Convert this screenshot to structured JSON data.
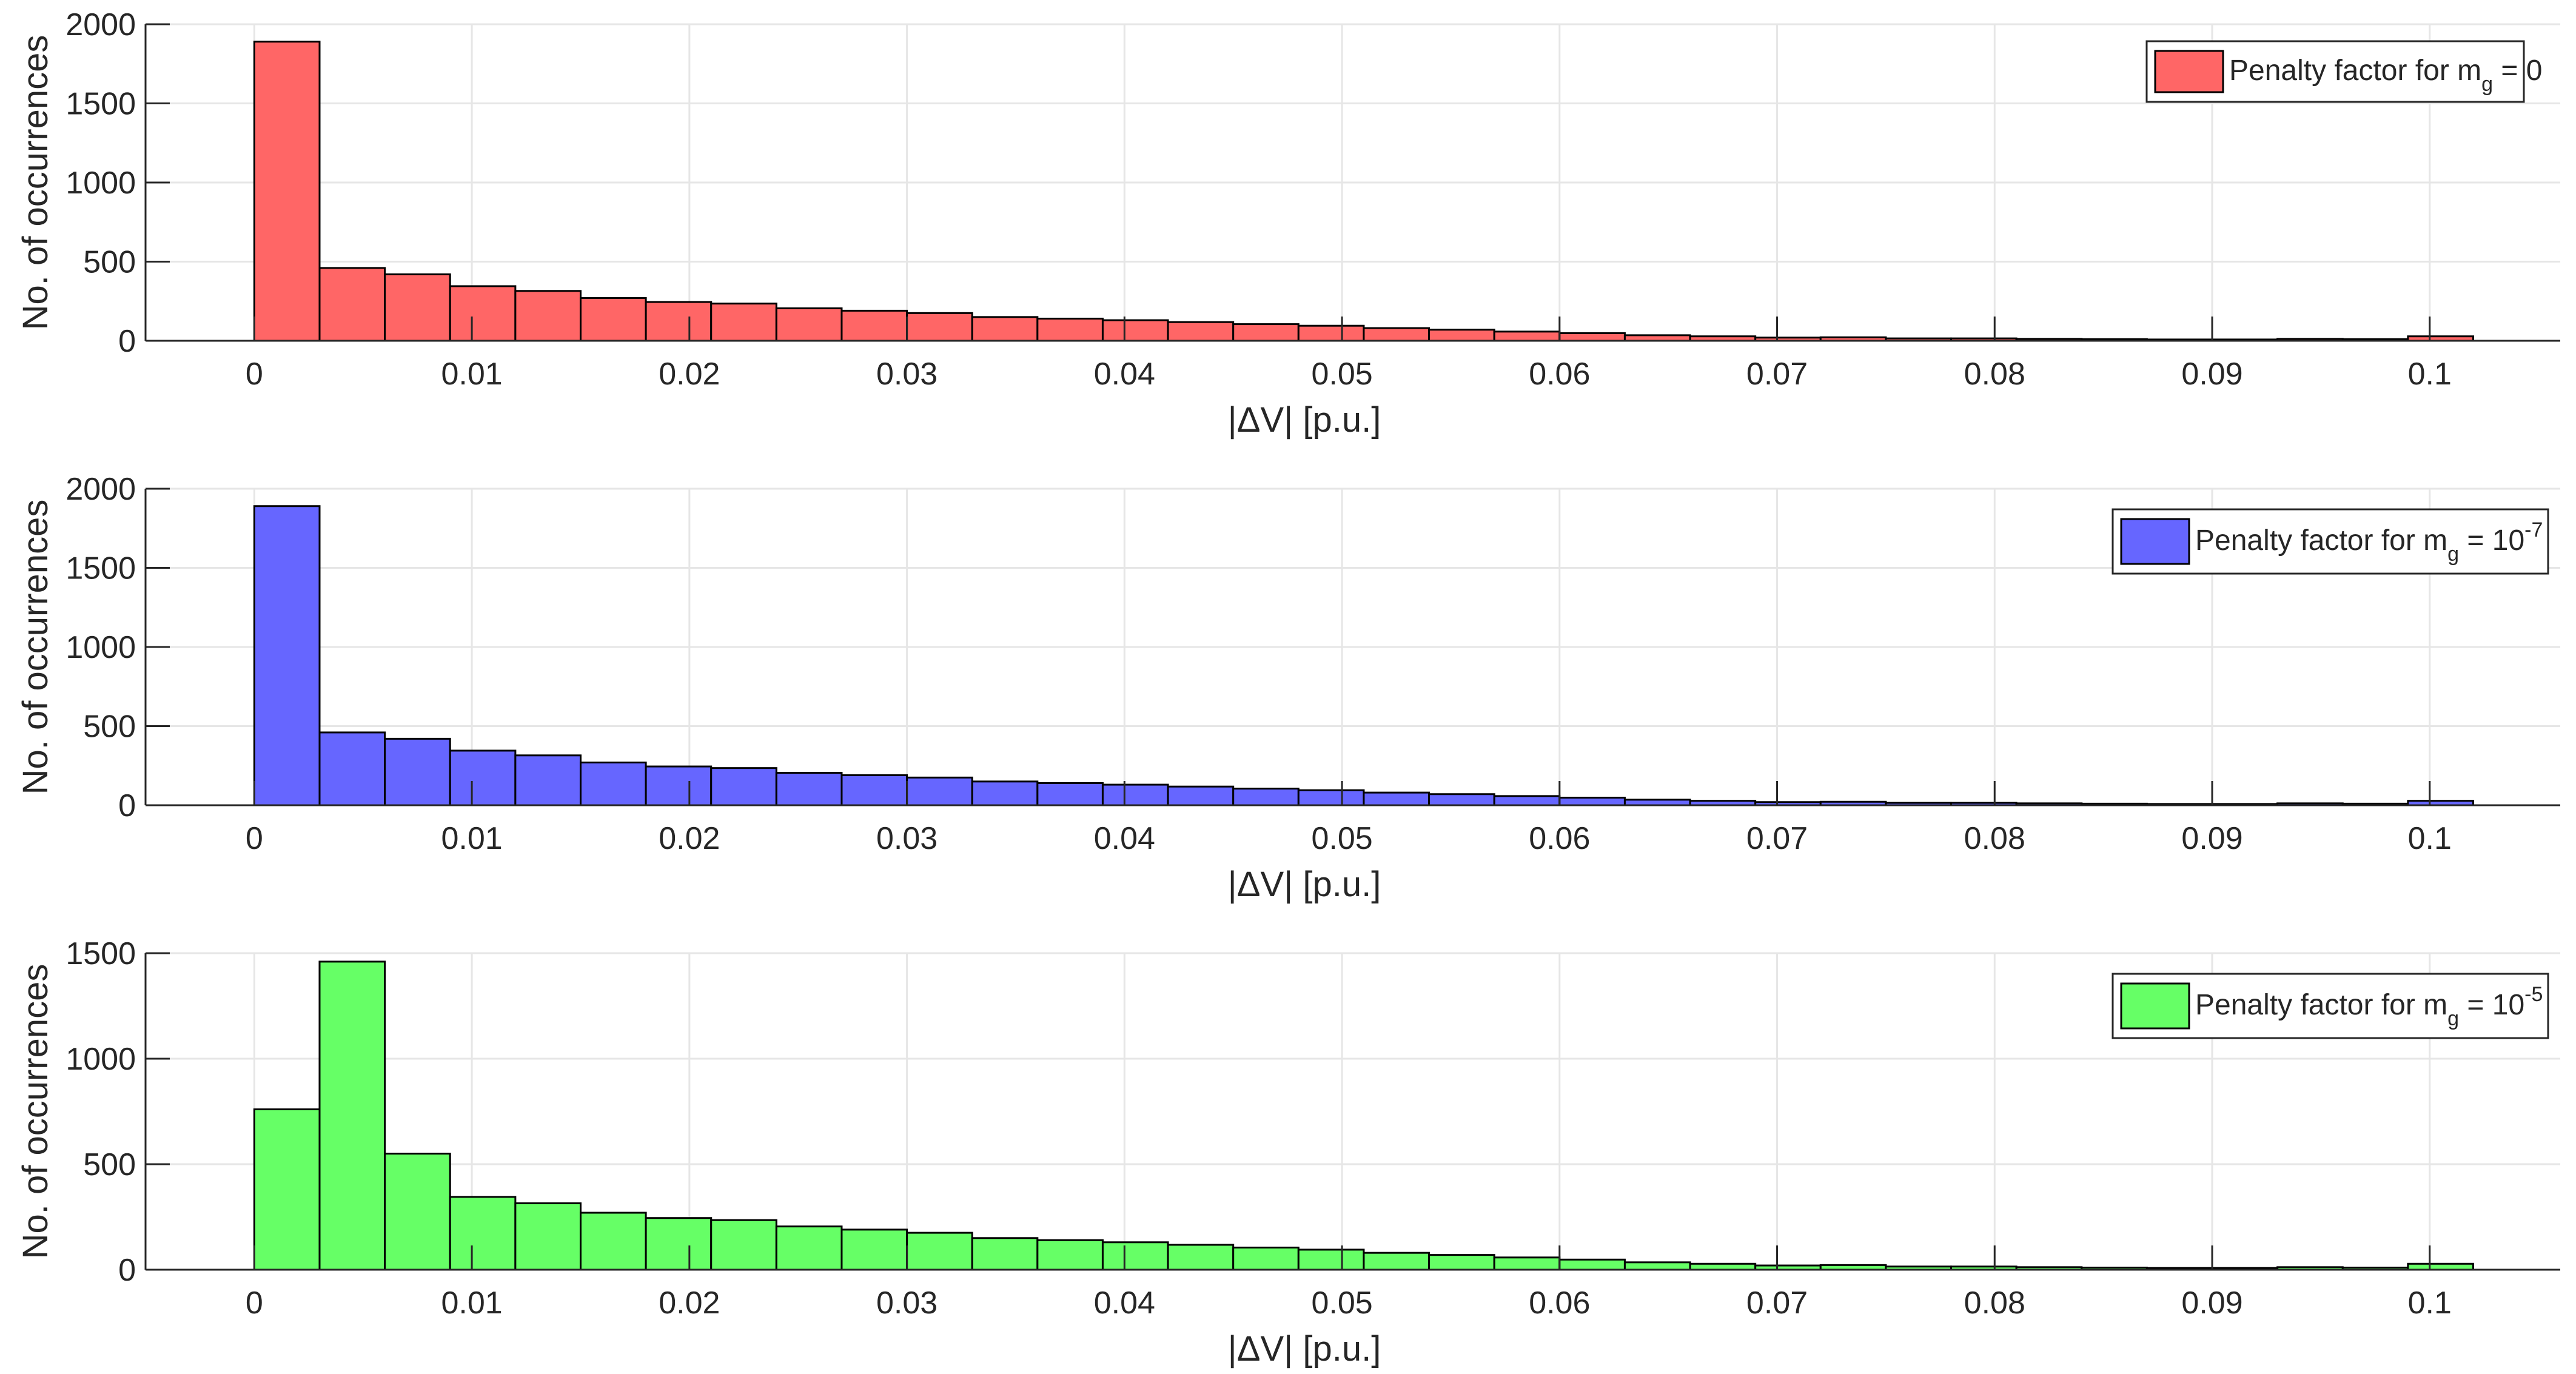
{
  "chart_data": [
    {
      "type": "bar",
      "bin_width": 0.003,
      "bin_start": 0,
      "x": [
        0.0015,
        0.0045,
        0.0075,
        0.0105,
        0.0135,
        0.0165,
        0.0195,
        0.0225,
        0.0255,
        0.0285,
        0.0315,
        0.0345,
        0.0375,
        0.0405,
        0.0435,
        0.0465,
        0.0495,
        0.0525,
        0.0555,
        0.0585,
        0.0615,
        0.0645,
        0.0675,
        0.0705,
        0.0735,
        0.0765,
        0.0795,
        0.0825,
        0.0855,
        0.0885,
        0.0915,
        0.0945,
        0.0975,
        0.1005
      ],
      "values": [
        1890,
        460,
        420,
        345,
        315,
        270,
        245,
        235,
        205,
        190,
        175,
        150,
        140,
        130,
        118,
        105,
        95,
        80,
        70,
        58,
        48,
        35,
        28,
        20,
        22,
        15,
        15,
        12,
        10,
        8,
        8,
        12,
        10,
        28
      ],
      "color": "#ff6666",
      "xlabel": "|ΔV| [p.u.]",
      "ylabel": "No. of occurrences",
      "xlim": [
        -0.005,
        0.106
      ],
      "ylim": [
        0,
        2000
      ],
      "xticks": [
        0,
        0.01,
        0.02,
        0.03,
        0.04,
        0.05,
        0.06,
        0.07,
        0.08,
        0.09,
        0.1
      ],
      "xtick_labels": [
        "0",
        "0.01",
        "0.02",
        "0.03",
        "0.04",
        "0.05",
        "0.06",
        "0.07",
        "0.08",
        "0.09",
        "0.1"
      ],
      "yticks": [
        0,
        500,
        1000,
        1500,
        2000
      ],
      "ytick_labels": [
        "0",
        "500",
        "1000",
        "1500",
        "2000"
      ],
      "legend": {
        "text": "Penalty factor for m",
        "sub": "g",
        "tail": " = 0",
        "sup": "",
        "placement": "top-right"
      },
      "grid": true
    },
    {
      "type": "bar",
      "bin_width": 0.003,
      "bin_start": 0,
      "x": [
        0.0015,
        0.0045,
        0.0075,
        0.0105,
        0.0135,
        0.0165,
        0.0195,
        0.0225,
        0.0255,
        0.0285,
        0.0315,
        0.0345,
        0.0375,
        0.0405,
        0.0435,
        0.0465,
        0.0495,
        0.0525,
        0.0555,
        0.0585,
        0.0615,
        0.0645,
        0.0675,
        0.0705,
        0.0735,
        0.0765,
        0.0795,
        0.0825,
        0.0855,
        0.0885,
        0.0915,
        0.0945,
        0.0975,
        0.1005
      ],
      "values": [
        1890,
        460,
        420,
        345,
        315,
        270,
        245,
        235,
        205,
        190,
        175,
        150,
        140,
        130,
        118,
        105,
        95,
        80,
        70,
        58,
        48,
        35,
        28,
        20,
        22,
        15,
        15,
        12,
        10,
        8,
        8,
        12,
        10,
        28
      ],
      "color": "#6666ff",
      "xlabel": "|ΔV| [p.u.]",
      "ylabel": "No. of occurrences",
      "xlim": [
        -0.005,
        0.106
      ],
      "ylim": [
        0,
        2000
      ],
      "xticks": [
        0,
        0.01,
        0.02,
        0.03,
        0.04,
        0.05,
        0.06,
        0.07,
        0.08,
        0.09,
        0.1
      ],
      "xtick_labels": [
        "0",
        "0.01",
        "0.02",
        "0.03",
        "0.04",
        "0.05",
        "0.06",
        "0.07",
        "0.08",
        "0.09",
        "0.1"
      ],
      "yticks": [
        0,
        500,
        1000,
        1500,
        2000
      ],
      "ytick_labels": [
        "0",
        "500",
        "1000",
        "1500",
        "2000"
      ],
      "legend": {
        "text": "Penalty factor for m",
        "sub": "g",
        "tail": " = 10",
        "sup": "-7",
        "placement": "top-right"
      },
      "grid": true
    },
    {
      "type": "bar",
      "bin_width": 0.003,
      "bin_start": 0,
      "x": [
        0.0015,
        0.0045,
        0.0075,
        0.0105,
        0.0135,
        0.0165,
        0.0195,
        0.0225,
        0.0255,
        0.0285,
        0.0315,
        0.0345,
        0.0375,
        0.0405,
        0.0435,
        0.0465,
        0.0495,
        0.0525,
        0.0555,
        0.0585,
        0.0615,
        0.0645,
        0.0675,
        0.0705,
        0.0735,
        0.0765,
        0.0795,
        0.0825,
        0.0855,
        0.0885,
        0.0915,
        0.0945,
        0.0975,
        0.1005
      ],
      "values": [
        760,
        1460,
        550,
        345,
        315,
        270,
        245,
        235,
        205,
        190,
        175,
        150,
        140,
        130,
        118,
        105,
        95,
        80,
        70,
        58,
        48,
        35,
        28,
        20,
        22,
        15,
        15,
        12,
        10,
        8,
        8,
        12,
        10,
        28
      ],
      "color": "#66ff66",
      "xlabel": "|ΔV| [p.u.]",
      "ylabel": "No. of occurrences",
      "xlim": [
        -0.005,
        0.106
      ],
      "ylim": [
        0,
        1500
      ],
      "xticks": [
        0,
        0.01,
        0.02,
        0.03,
        0.04,
        0.05,
        0.06,
        0.07,
        0.08,
        0.09,
        0.1
      ],
      "xtick_labels": [
        "0",
        "0.01",
        "0.02",
        "0.03",
        "0.04",
        "0.05",
        "0.06",
        "0.07",
        "0.08",
        "0.09",
        "0.1"
      ],
      "yticks": [
        0,
        500,
        1000,
        1500
      ],
      "ytick_labels": [
        "0",
        "500",
        "1000",
        "1500"
      ],
      "legend": {
        "text": "Penalty factor for m",
        "sub": "g",
        "tail": " = 10",
        "sup": "-5",
        "placement": "top-right"
      },
      "grid": true
    }
  ]
}
